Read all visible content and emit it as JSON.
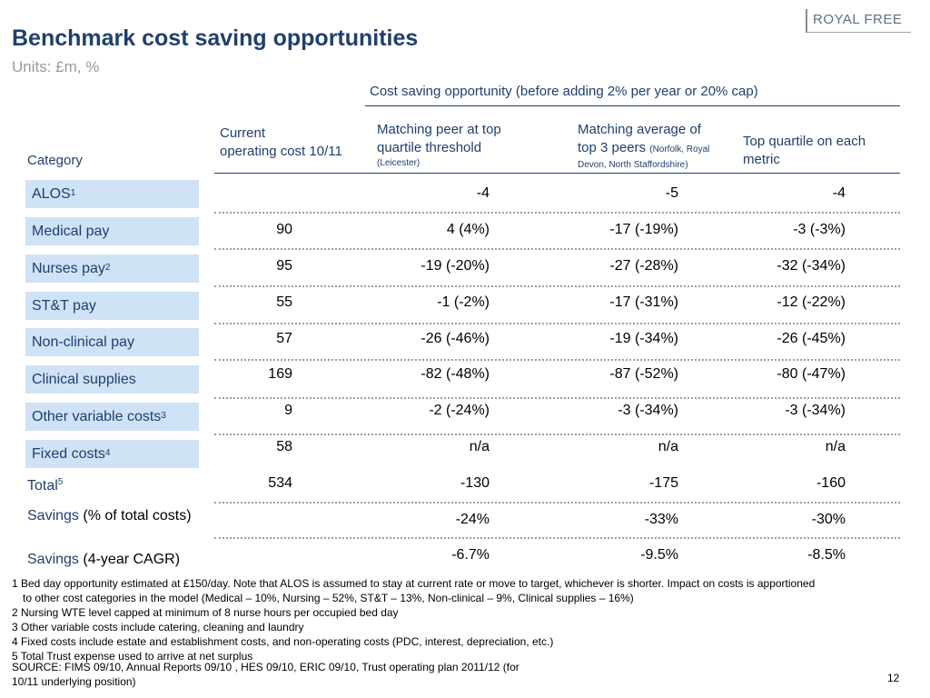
{
  "logo": "ROYAL FREE",
  "title": "Benchmark cost saving opportunities",
  "units": "Units: £m, %",
  "super_header": "Cost saving opportunity (before adding 2% per year or 20% cap)",
  "headers": {
    "category": "Category",
    "current_line1": "Current",
    "current_line2": "operating cost 10/11",
    "peer_line1": "Matching peer at top",
    "peer_line2": "quartile threshold",
    "peer_note": "(Leicester)",
    "avg_line1": "Matching average of",
    "avg_line2": "top 3 peers",
    "avg_note_a": "(Norfolk, Royal",
    "avg_note_b": "Devon, North Staffordshire)",
    "quartile_line1": "Top quartile on each",
    "quartile_line2": "metric"
  },
  "rows": [
    {
      "label": "ALOS",
      "sup": "1",
      "current": "",
      "peer": "-4",
      "avg": "-5",
      "quartile": "-4"
    },
    {
      "label": "Medical pay",
      "sup": "",
      "current": "90",
      "peer": "4 (4%)",
      "avg": "-17 (-19%)",
      "quartile": "-3 (-3%)"
    },
    {
      "label": "Nurses pay",
      "sup": "2",
      "current": "95",
      "peer": "-19 (-20%)",
      "avg": "-27 (-28%)",
      "quartile": "-32 (-34%)"
    },
    {
      "label": "ST&T pay",
      "sup": "",
      "current": "55",
      "peer": "-1 (-2%)",
      "avg": "-17 (-31%)",
      "quartile": "-12 (-22%)"
    },
    {
      "label": "Non-clinical pay",
      "sup": "",
      "current": "57",
      "peer": "-26 (-46%)",
      "avg": "-19 (-34%)",
      "quartile": "-26 (-45%)"
    },
    {
      "label": "Clinical supplies",
      "sup": "",
      "current": "169",
      "peer": "-82 (-48%)",
      "avg": "-87 (-52%)",
      "quartile": "-80 (-47%)"
    },
    {
      "label": "Other variable costs",
      "sup": "3",
      "current": "9",
      "peer": "-2 (-24%)",
      "avg": "-3 (-34%)",
      "quartile": "-3 (-34%)"
    },
    {
      "label": "Fixed costs",
      "sup": "4",
      "current": "58",
      "peer": "n/a",
      "avg": "n/a",
      "quartile": "n/a"
    }
  ],
  "total": {
    "label": "Total",
    "sup": "5",
    "current": "534",
    "peer": "-130",
    "avg": "-175",
    "quartile": "-160"
  },
  "savings_pct": {
    "label_a": "Savings",
    "label_b": "(% of total costs)",
    "peer": "-24%",
    "avg": "-33%",
    "quartile": "-30%"
  },
  "savings_cagr": {
    "label_a": "Savings",
    "label_b": "(4-year CAGR)",
    "peer": "-6.7%",
    "avg": "-9.5%",
    "quartile": "-8.5%"
  },
  "footnotes": {
    "n1a": "1 Bed day opportunity estimated at £150/day. Note that ALOS is assumed to stay at current rate or move to target, whichever is shorter. Impact on costs is apportioned",
    "n1b": "to other cost categories in the model (Medical – 10%, Nursing – 52%, ST&T – 13%, Non-clinical – 9%, Clinical supplies – 16%)",
    "n2": "2 Nursing WTE level capped at minimum of 8 nurse hours per occupied bed day",
    "n3": "3 Other variable costs include catering, cleaning and laundry",
    "n4": "4 Fixed costs include estate and establishment costs, and non-operating costs (PDC, interest, depreciation, etc.)",
    "n5": "5 Total Trust expense used to arrive at net surplus"
  },
  "source_line1": "SOURCE: FIMS 09/10, Annual Reports 09/10 , HES 09/10, ERIC 09/10, Trust operating plan 2011/12 (for",
  "source_line2": "10/11 underlying position)",
  "page_number": "12"
}
